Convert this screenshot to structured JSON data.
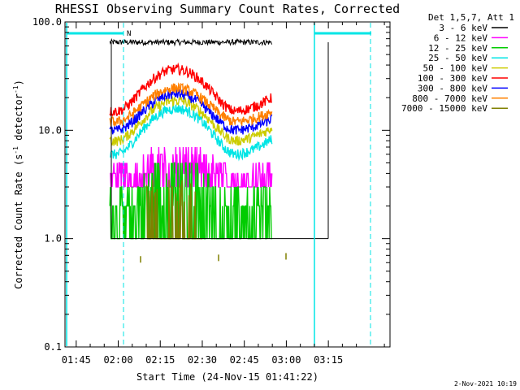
{
  "chart_data": {
    "type": "line",
    "title": "RHESSI Observing Summary Count Rates, Corrected",
    "xlabel": "Start Time (24-Nov-15 01:41:22)",
    "ylabel_main": "Corrected Count Rate (s",
    "ylabel_sup1": "-1",
    "ylabel_mid": " detector",
    "ylabel_sup2": "-1",
    "ylabel_end": ")",
    "yscale": "log",
    "ylim": [
      0.1,
      100.0
    ],
    "xlim_minutes": [
      -19,
      97
    ],
    "x_ticks": [
      {
        "m": -15,
        "label": "01:45"
      },
      {
        "m": 0,
        "label": "02:00"
      },
      {
        "m": 15,
        "label": "02:15"
      },
      {
        "m": 30,
        "label": "02:30"
      },
      {
        "m": 45,
        "label": "02:45"
      },
      {
        "m": 60,
        "label": "03:00"
      },
      {
        "m": 75,
        "label": "03:15"
      }
    ],
    "y_ticks": [
      {
        "v": 100,
        "label": "100.0"
      },
      {
        "v": 10,
        "label": "10.0"
      },
      {
        "v": 1,
        "label": "1.0"
      },
      {
        "v": 0.1,
        "label": "0.1"
      }
    ],
    "legend_header": "Det 1,5,7, Att 1",
    "legend_position": "top-right",
    "series": [
      {
        "name": "3 - 6 keV",
        "color": "#000000",
        "start": -3,
        "end": 55,
        "base": 65,
        "peak": 0
      },
      {
        "name": "6 - 12 keV",
        "color": "#ff00ff",
        "start": -3,
        "end": 55,
        "base": 4,
        "peak": 3.5
      },
      {
        "name": "12 - 25 keV",
        "color": "#00cc00",
        "start": -3,
        "end": 55,
        "base": 2.2,
        "peak": 2.5
      },
      {
        "name": "25 - 50 keV",
        "color": "#00e5e5",
        "start": -3,
        "end": 55,
        "base": 6,
        "peak": 11
      },
      {
        "name": "50 - 100 keV",
        "color": "#cccc00",
        "start": -3,
        "end": 55,
        "base": 8,
        "peak": 12
      },
      {
        "name": "100 - 300 keV",
        "color": "#ff0000",
        "start": -3,
        "end": 55,
        "base": 15,
        "peak": 24
      },
      {
        "name": "300 - 800 keV",
        "color": "#0000ff",
        "start": -3,
        "end": 55,
        "base": 10,
        "peak": 13
      },
      {
        "name": "800 - 7000 keV",
        "color": "#ff8000",
        "start": -3,
        "end": 55,
        "base": 12,
        "peak": 14
      },
      {
        "name": "7000 - 15000 keV",
        "color": "#808000",
        "start": 10,
        "end": 30,
        "base": 1.1,
        "peak": 0.6
      }
    ],
    "annotations": [
      {
        "type": "flag",
        "label": "N",
        "m": 0.5
      }
    ]
  },
  "footer": {
    "timestamp": "2-Nov-2021 10:19"
  }
}
